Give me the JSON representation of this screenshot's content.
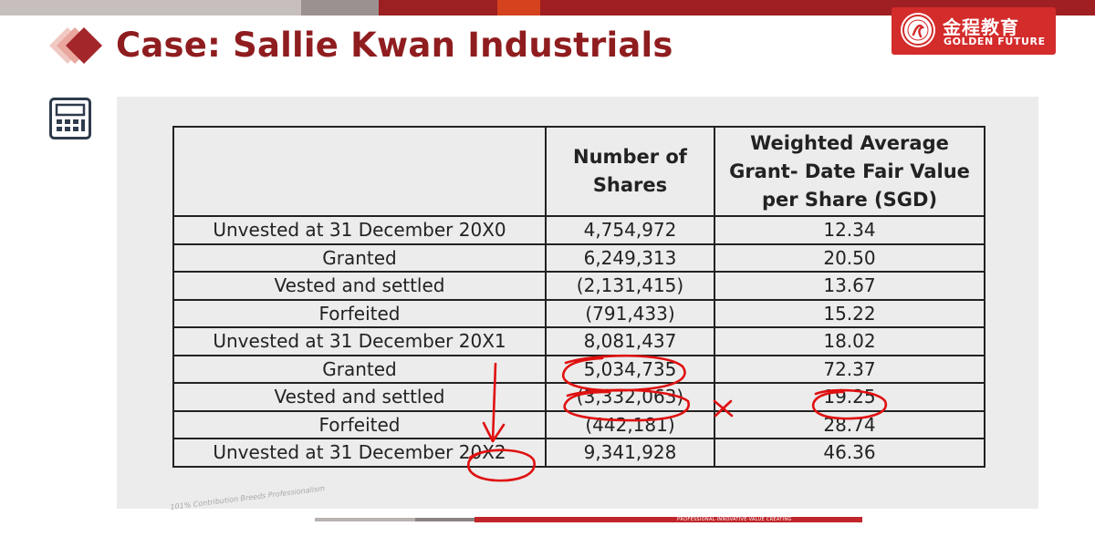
{
  "slide": {
    "title": "Case: Sallie Kwan Industrials"
  },
  "logo": {
    "chinese_name": "金程教育",
    "english_name": "GOLDEN FUTURE",
    "registered_mark": "®"
  },
  "table": {
    "headers": {
      "col1": "",
      "col2_line1": "Number of",
      "col2_line2": "Shares",
      "col3_line1": "Weighted Average",
      "col3_line2": "Grant- Date Fair Value",
      "col3_line3": "per Share (SGD)"
    },
    "rows": [
      {
        "label": "Unvested at 31 December 20X0",
        "shares": "4,754,972",
        "fair_value": "12.34"
      },
      {
        "label": "Granted",
        "shares": "6,249,313",
        "fair_value": "20.50"
      },
      {
        "label": "Vested and settled",
        "shares": "(2,131,415)",
        "fair_value": "13.67"
      },
      {
        "label": "Forfeited",
        "shares": "(791,433)",
        "fair_value": "15.22"
      },
      {
        "label": "Unvested at 31 December 20X1",
        "shares": "8,081,437",
        "fair_value": "18.02"
      },
      {
        "label": "Granted",
        "shares": "5,034,735",
        "fair_value": "72.37"
      },
      {
        "label": "Vested and settled",
        "shares": "(3,332,063)",
        "fair_value": "19.25"
      },
      {
        "label": "Forfeited",
        "shares": "(442,181)",
        "fair_value": "28.74"
      },
      {
        "label": "Unvested at 31 December 20X2",
        "shares": "9,341,928",
        "fair_value": "46.36"
      }
    ]
  },
  "footer": {
    "tagline": "101% Contribution Breeds Professionalism",
    "motto": "PROFESSIONAL·INNOVATIVE·VALUE CREATING"
  },
  "colors": {
    "title_red": "#8f1d1f",
    "brand_red": "#d42b2b",
    "annotation_red": "#e01010",
    "panel_gray": "#ececec"
  }
}
